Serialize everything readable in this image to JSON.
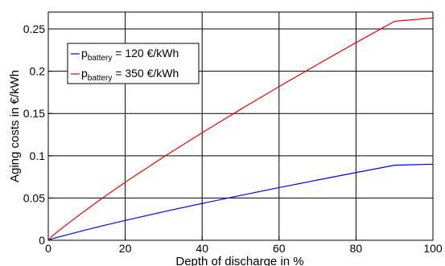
{
  "chart_data": {
    "type": "line",
    "title": "",
    "xlabel": "Depth of discharge in %",
    "ylabel": "Aging costs in €/kWh",
    "xlim": [
      0,
      100
    ],
    "ylim": [
      0,
      0.27
    ],
    "x_ticks": [
      0,
      20,
      40,
      60,
      80,
      100
    ],
    "x_tick_labels": [
      "0",
      "20",
      "40",
      "60",
      "80",
      "100"
    ],
    "y_ticks": [
      0,
      0.05,
      0.1,
      0.15,
      0.2,
      0.25
    ],
    "y_tick_labels": [
      "0",
      "0.05",
      "0.1",
      "0.15",
      "0.2",
      "0.25"
    ],
    "grid": true,
    "legend_position": "top-left",
    "x": [
      0,
      1,
      2,
      5,
      10,
      15,
      20,
      30,
      40,
      50,
      60,
      70,
      80,
      90,
      100
    ],
    "series": [
      {
        "name_main": "p",
        "name_sub": "battery",
        "name_rest": " = 120 €/kWh",
        "color": "#0000ee",
        "values": [
          0.0,
          0.0017,
          0.003,
          0.0066,
          0.0125,
          0.0181,
          0.0235,
          0.0338,
          0.0436,
          0.0531,
          0.0623,
          0.0713,
          0.0801,
          0.0888,
          0.09
        ]
      },
      {
        "name_main": "p",
        "name_sub": "battery",
        "name_rest": " = 350 €/kWh",
        "color": "#ee0000",
        "values": [
          0.0,
          0.0049,
          0.0088,
          0.0193,
          0.0365,
          0.0529,
          0.0687,
          0.0986,
          0.1273,
          0.1549,
          0.1818,
          0.2081,
          0.2338,
          0.259,
          0.263
        ]
      }
    ]
  }
}
